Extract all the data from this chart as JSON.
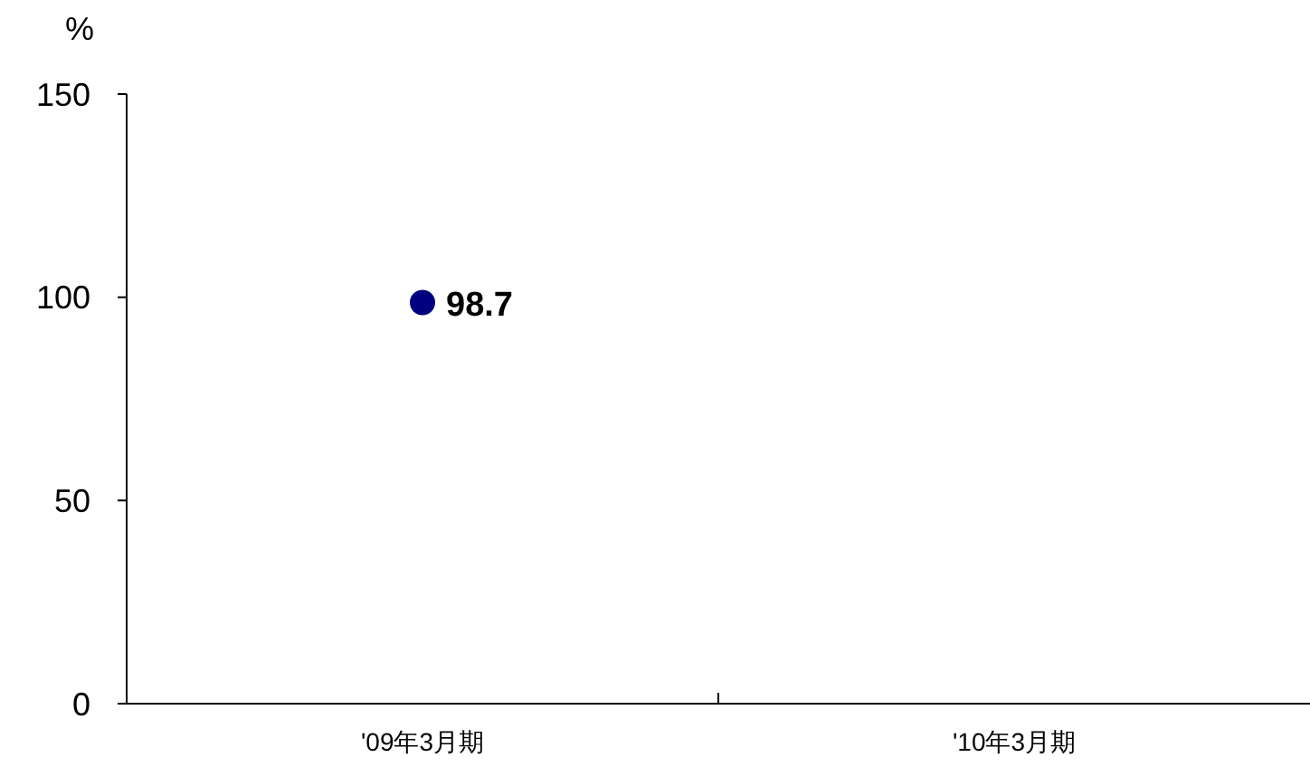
{
  "chart_data": {
    "type": "scatter",
    "ylabel": "%",
    "categories": [
      "'09年3月期",
      "'10年3月期"
    ],
    "series": [
      {
        "color": "#000080",
        "values": [
          98.7,
          null
        ]
      }
    ],
    "ylim": [
      0,
      150
    ],
    "yticks": [
      0,
      50,
      100,
      150
    ],
    "marker": "circle",
    "data_labels": true
  }
}
